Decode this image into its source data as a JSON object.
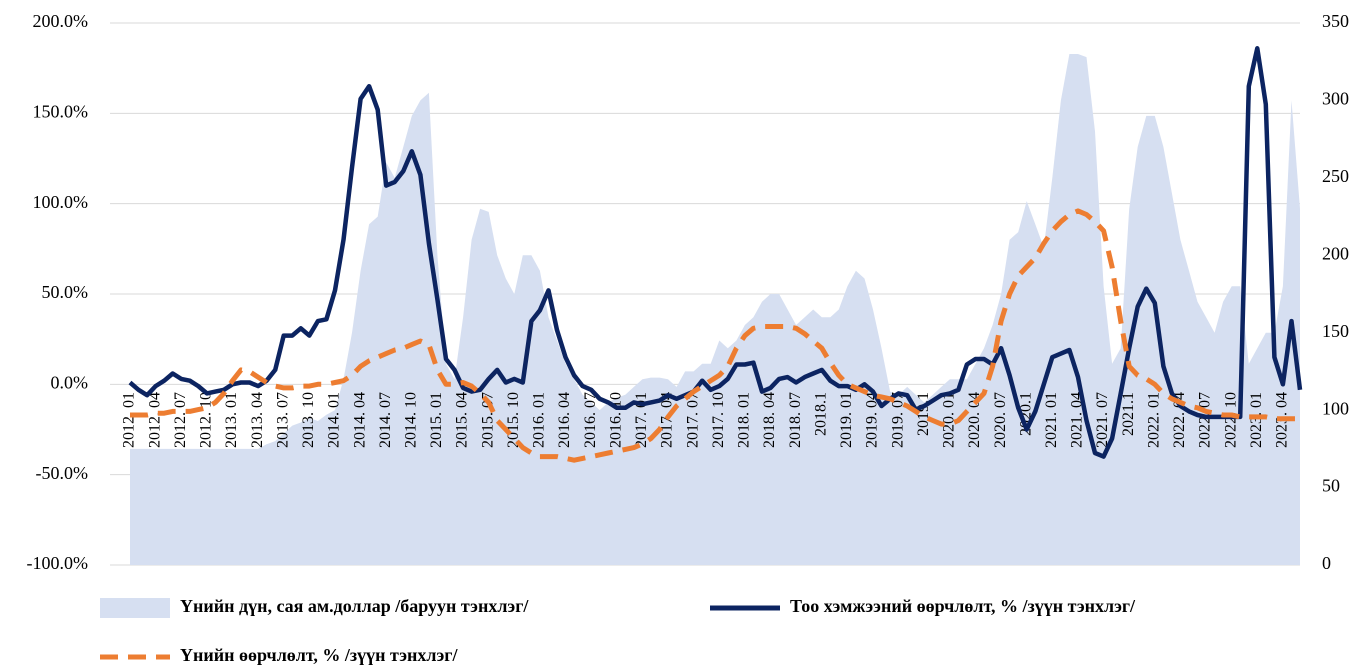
{
  "chart_data": {
    "type": "combo",
    "categories": [
      "2012. 01",
      null,
      null,
      "2012. 04",
      null,
      null,
      "2012. 07",
      null,
      null,
      "2012. 10",
      null,
      null,
      "2013. 01",
      null,
      null,
      "2013. 04",
      null,
      null,
      "2013. 07",
      null,
      null,
      "2013. 10",
      null,
      null,
      "2014. 01",
      null,
      null,
      "2014. 04",
      null,
      null,
      "2014. 07",
      null,
      null,
      "2014. 10",
      null,
      null,
      "2015. 01",
      null,
      null,
      "2015. 04",
      null,
      null,
      "2015. 07",
      null,
      null,
      "2015. 10",
      null,
      null,
      "2016. 01",
      null,
      null,
      "2016. 04",
      null,
      null,
      "2016. 07",
      null,
      null,
      "2016. 10",
      null,
      null,
      "2017. 01",
      null,
      null,
      "2017. 04",
      null,
      null,
      "2017. 07",
      null,
      null,
      "2017. 10",
      null,
      null,
      "2018. 01",
      null,
      null,
      "2018. 04",
      null,
      null,
      "2018. 07",
      null,
      null,
      "2018.1",
      null,
      null,
      "2019. 01",
      null,
      null,
      "2019. 04",
      null,
      null,
      "2019. 07",
      null,
      null,
      "2019.1",
      null,
      null,
      "2020. 01",
      null,
      null,
      "2020. 04",
      null,
      null,
      "2020. 07",
      null,
      null,
      "2020.1",
      null,
      null,
      "2021. 01",
      null,
      null,
      "2021. 04",
      null,
      null,
      "2021. 07",
      null,
      null,
      "2021.1",
      null,
      null,
      "2022. 01",
      null,
      null,
      "2022. 04",
      null,
      null,
      "2022. 07",
      null,
      null,
      "2022. 10",
      null,
      null,
      "2023. 01",
      null,
      null,
      "2023. 04",
      null,
      null
    ],
    "series": [
      {
        "name": "Үнийн дүн, сая ам.доллар /баруун тэнхлэг/",
        "type": "area",
        "axis": "y2",
        "color": "#d6dff1",
        "values": [
          75,
          75,
          75,
          75,
          75,
          75,
          75,
          75,
          75,
          75,
          75,
          75,
          75,
          75,
          75,
          75,
          78,
          80,
          85,
          90,
          92,
          95,
          93,
          97,
          100,
          120,
          150,
          190,
          220,
          225,
          260,
          250,
          270,
          290,
          300,
          305,
          200,
          130,
          120,
          160,
          210,
          230,
          228,
          200,
          185,
          175,
          200,
          200,
          190,
          160,
          145,
          130,
          120,
          110,
          105,
          100,
          105,
          108,
          110,
          115,
          120,
          121,
          121,
          120,
          115,
          125,
          125,
          130,
          130,
          145,
          140,
          145,
          155,
          160,
          170,
          175,
          175,
          165,
          155,
          160,
          165,
          160,
          160,
          165,
          180,
          190,
          185,
          165,
          140,
          112,
          110,
          115,
          110,
          105,
          110,
          115,
          120,
          120,
          120,
          130,
          140,
          155,
          175,
          210,
          215,
          235,
          220,
          205,
          250,
          300,
          330,
          330,
          328,
          280,
          180,
          130,
          140,
          230,
          270,
          290,
          290,
          270,
          240,
          210,
          190,
          170,
          160,
          150,
          170,
          180,
          180,
          130,
          140,
          150,
          150,
          180,
          300,
          230
        ]
      },
      {
        "name": "Тоо хэмжээний өөрчлөлт, % /зүүн тэнхлэг/",
        "type": "line",
        "color": "#0c2461",
        "values": [
          1,
          -3,
          -6,
          -1,
          2,
          6,
          3,
          2,
          -1,
          -5,
          -4,
          -3,
          0,
          1,
          1,
          -1,
          2,
          8,
          27,
          27,
          31,
          27,
          35,
          36,
          52,
          80,
          120,
          158,
          165,
          152,
          110,
          112,
          118,
          129,
          116,
          78,
          47,
          14,
          8,
          -2,
          -4,
          -3,
          3,
          8,
          1,
          3,
          1,
          35,
          41,
          52,
          30,
          15,
          5,
          -1,
          -3,
          -8,
          -10,
          -13,
          -13,
          -10,
          -11,
          -10,
          -9,
          -6,
          -8,
          -6,
          -4,
          2,
          -3,
          -1,
          3,
          11,
          11,
          12,
          -4,
          -2,
          3,
          4,
          1,
          4,
          6,
          8,
          2,
          -1,
          -1,
          -3,
          0,
          -4,
          -12,
          -8,
          -5,
          -6,
          -14,
          -12,
          -9,
          -6,
          -5,
          -3,
          11,
          14,
          14,
          11,
          20,
          5,
          -13,
          -25,
          -15,
          0,
          15,
          17,
          19,
          4,
          -20,
          -38,
          -40,
          -30,
          -5,
          20,
          43,
          53,
          45,
          10,
          -5,
          -12,
          -15,
          -17,
          -18,
          -18,
          -18,
          -18,
          -18,
          165,
          186,
          155,
          15,
          0,
          35,
          -3
        ]
      },
      {
        "name": "Үнийн өөрчлөлт, % /зүүн тэнхлэг/",
        "type": "line",
        "dash": true,
        "color": "#ed7d31",
        "values": [
          -17,
          -17,
          -17,
          -16,
          -16,
          -15,
          -15,
          -15,
          -14,
          -13,
          -10,
          -5,
          2,
          8,
          7,
          4,
          1,
          -1,
          -2,
          -2,
          -1,
          -1,
          0,
          0,
          1,
          2,
          5,
          10,
          13,
          15,
          17,
          19,
          20,
          22,
          24,
          22,
          8,
          0,
          0,
          1,
          -1,
          -5,
          -10,
          -20,
          -25,
          -30,
          -35,
          -38,
          -40,
          -40,
          -40,
          -41,
          -42,
          -41,
          -40,
          -39,
          -38,
          -37,
          -36,
          -35,
          -33,
          -30,
          -25,
          -18,
          -12,
          -8,
          -4,
          -1,
          2,
          5,
          10,
          20,
          27,
          31,
          32,
          32,
          32,
          32,
          31,
          28,
          24,
          20,
          12,
          5,
          0,
          -2,
          -4,
          -6,
          -7,
          -8,
          -10,
          -12,
          -15,
          -18,
          -20,
          -22,
          -22,
          -20,
          -15,
          -10,
          -5,
          10,
          35,
          50,
          60,
          65,
          70,
          78,
          85,
          90,
          94,
          96,
          94,
          90,
          85,
          65,
          35,
          10,
          5,
          3,
          0,
          -5,
          -8,
          -10,
          -12,
          -13,
          -15,
          -16,
          -17,
          -17,
          -18,
          -18,
          -18,
          -18,
          -19,
          -19,
          -19,
          -19
        ]
      }
    ],
    "ylim": [
      -100,
      200
    ],
    "yticks": [
      {
        "value": -100,
        "label": "-100.0%"
      },
      {
        "value": -50,
        "label": "-50.0%"
      },
      {
        "value": 0,
        "label": "0.0%"
      },
      {
        "value": 50,
        "label": "50.0%"
      },
      {
        "value": 100,
        "label": "100.0%"
      },
      {
        "value": 150,
        "label": "150.0%"
      },
      {
        "value": 200,
        "label": "200.0%"
      }
    ],
    "y2lim": [
      0,
      350
    ],
    "y2ticks": [
      0,
      50,
      100,
      150,
      200,
      250,
      300,
      350
    ],
    "grid": true
  }
}
